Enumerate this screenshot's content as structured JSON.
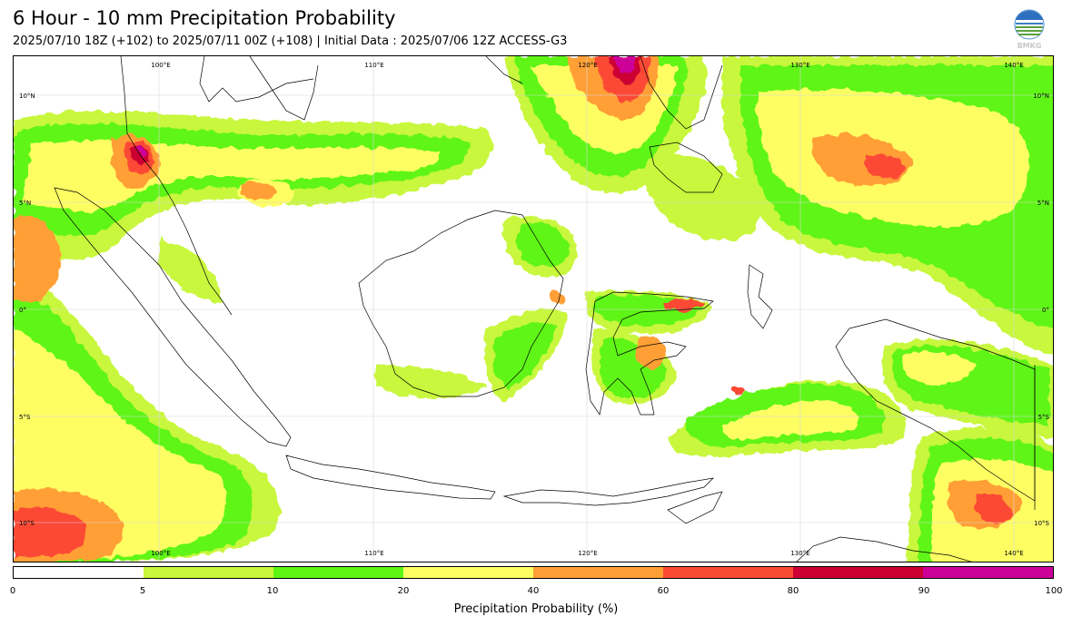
{
  "header": {
    "title": "6 Hour - 10 mm Precipitation Probability",
    "subtitle": "2025/07/10 18Z (+102) to 2025/07/11 00Z (+108) | Initial Data : 2025/07/06 12Z ACCESS-G3",
    "logo_icon": "bmkg-logo-icon",
    "logo_text": "BMKG"
  },
  "map": {
    "lon_labels": [
      "100°E",
      "110°E",
      "120°E",
      "130°E",
      "140°E"
    ],
    "lat_labels": [
      "10°N",
      "5°N",
      "0°",
      "5°S",
      "10°S"
    ],
    "gridlines": true
  },
  "colorbar": {
    "label": "Precipitation Probability (%)",
    "ticks": [
      "0",
      "5",
      "10",
      "20",
      "40",
      "60",
      "80",
      "90",
      "100"
    ],
    "colors": [
      "#ffffff",
      "#c8f73c",
      "#5ef513",
      "#fefe63",
      "#ff9f36",
      "#fb4a34",
      "#cc0033",
      "#cc0099"
    ]
  }
}
